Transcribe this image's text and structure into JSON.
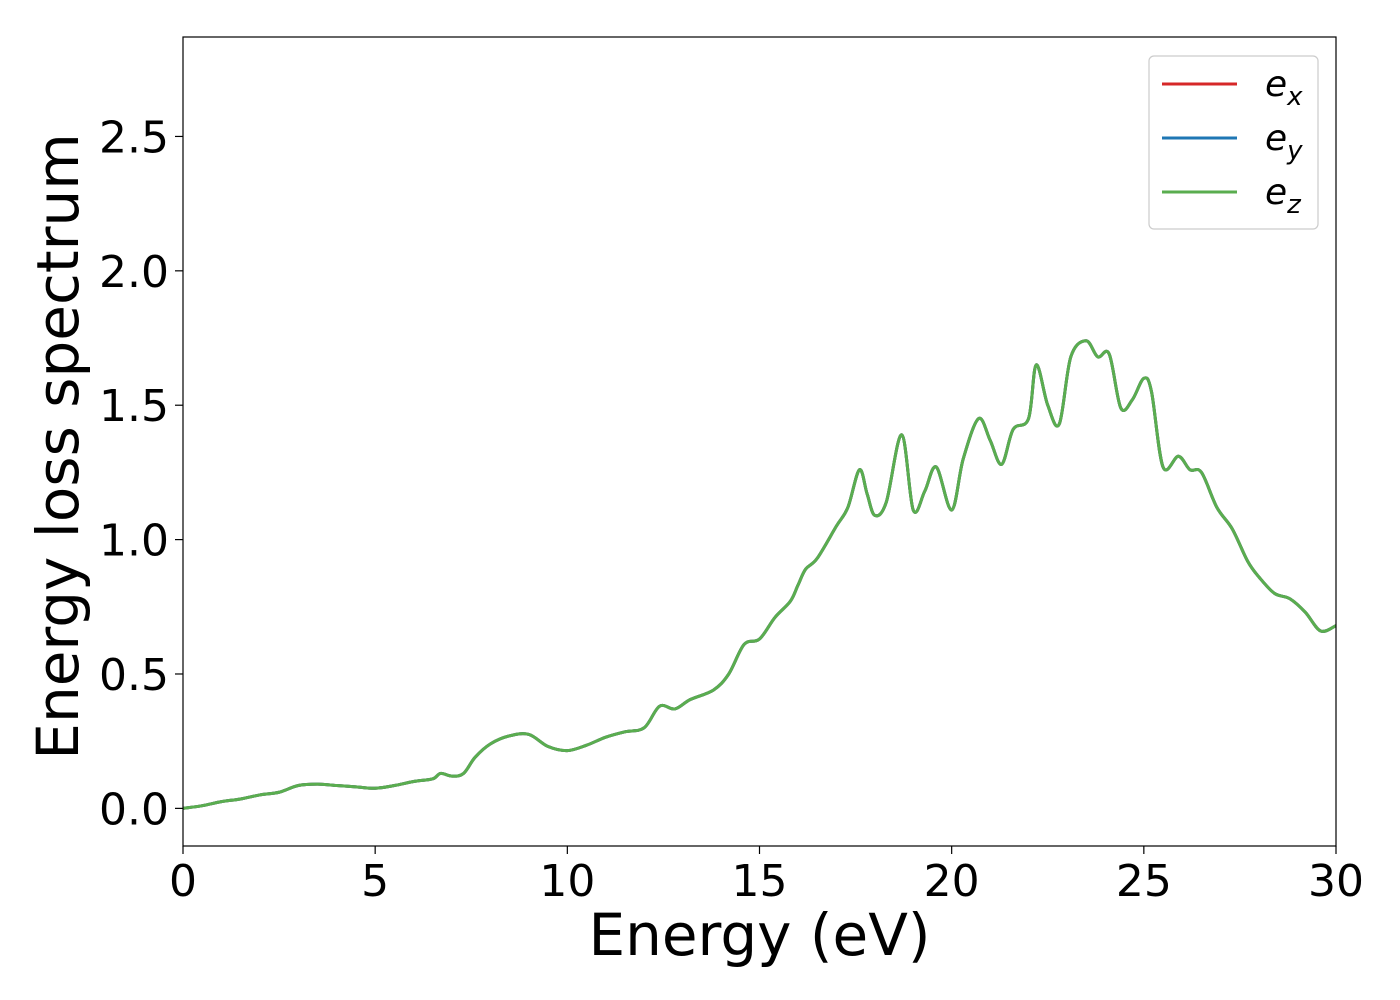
{
  "chart_data": {
    "type": "line",
    "xlabel": "Energy (eV)",
    "ylabel": "Energy loss spectrum",
    "xlim": [
      0,
      30
    ],
    "ylim": [
      -0.14,
      2.87
    ],
    "xticks": [
      0,
      5,
      10,
      15,
      20,
      25,
      30
    ],
    "xtick_labels": [
      "0",
      "5",
      "10",
      "15",
      "20",
      "25",
      "30"
    ],
    "yticks": [
      0.0,
      0.5,
      1.0,
      1.5,
      2.0,
      2.5
    ],
    "ytick_labels": [
      "0.0",
      "0.5",
      "1.0",
      "1.5",
      "2.0",
      "2.5"
    ],
    "grid": false,
    "legend_position": "top-right",
    "colors": {
      "e_x": "#d62728",
      "e_y": "#1f77b4",
      "e_z": "#5aad4f"
    },
    "x": [
      0,
      0.5,
      1,
      1.5,
      2,
      2.5,
      3,
      3.5,
      4,
      4.5,
      5,
      5.5,
      6,
      6.5,
      6.7,
      7,
      7.3,
      7.6,
      8,
      8.5,
      9,
      9.5,
      10,
      10.5,
      11,
      11.5,
      12,
      12.4,
      12.8,
      13.2,
      13.8,
      14.2,
      14.6,
      15,
      15.4,
      15.8,
      16,
      16.2,
      16.5,
      17,
      17.3,
      17.6,
      17.8,
      18,
      18.3,
      18.7,
      19,
      19.3,
      19.6,
      20,
      20.3,
      20.7,
      21,
      21.3,
      21.6,
      22,
      22.2,
      22.5,
      22.8,
      23.1,
      23.5,
      23.8,
      24.1,
      24.4,
      24.7,
      25,
      25.2,
      25.5,
      25.9,
      26.2,
      26.5,
      26.9,
      27.3,
      27.7,
      28,
      28.4,
      28.8,
      29.2,
      29.6,
      30
    ],
    "series": [
      {
        "name": "e_x",
        "label": "e",
        "subscript": "x",
        "visible_line": false,
        "values": [
          0,
          0.01,
          0.025,
          0.035,
          0.05,
          0.06,
          0.085,
          0.09,
          0.085,
          0.08,
          0.075,
          0.085,
          0.1,
          0.11,
          0.13,
          0.12,
          0.13,
          0.19,
          0.24,
          0.27,
          0.275,
          0.23,
          0.215,
          0.235,
          0.265,
          0.285,
          0.3,
          0.38,
          0.37,
          0.405,
          0.44,
          0.5,
          0.61,
          0.63,
          0.71,
          0.77,
          0.83,
          0.89,
          0.93,
          1.05,
          1.12,
          1.26,
          1.17,
          1.09,
          1.14,
          1.39,
          1.11,
          1.18,
          1.27,
          1.11,
          1.3,
          1.45,
          1.37,
          1.28,
          1.41,
          1.45,
          1.65,
          1.5,
          1.43,
          1.68,
          1.74,
          1.68,
          1.69,
          1.49,
          1.52,
          1.6,
          1.55,
          1.27,
          1.31,
          1.26,
          1.25,
          1.12,
          1.04,
          0.92,
          0.86,
          0.8,
          0.78,
          0.73,
          0.66,
          0.68
        ]
      },
      {
        "name": "e_y",
        "label": "e",
        "subscript": "y",
        "visible_line": false,
        "values": [
          0,
          0.01,
          0.025,
          0.035,
          0.05,
          0.06,
          0.085,
          0.09,
          0.085,
          0.08,
          0.075,
          0.085,
          0.1,
          0.11,
          0.13,
          0.12,
          0.13,
          0.19,
          0.24,
          0.27,
          0.275,
          0.23,
          0.215,
          0.235,
          0.265,
          0.285,
          0.3,
          0.38,
          0.37,
          0.405,
          0.44,
          0.5,
          0.61,
          0.63,
          0.71,
          0.77,
          0.83,
          0.89,
          0.93,
          1.05,
          1.12,
          1.26,
          1.17,
          1.09,
          1.14,
          1.39,
          1.11,
          1.18,
          1.27,
          1.11,
          1.3,
          1.45,
          1.37,
          1.28,
          1.41,
          1.45,
          1.65,
          1.5,
          1.43,
          1.68,
          1.74,
          1.68,
          1.69,
          1.49,
          1.52,
          1.6,
          1.55,
          1.27,
          1.31,
          1.26,
          1.25,
          1.12,
          1.04,
          0.92,
          0.86,
          0.8,
          0.78,
          0.73,
          0.66,
          0.68
        ]
      },
      {
        "name": "e_z",
        "label": "e",
        "subscript": "z",
        "visible_line": true,
        "values": [
          0,
          0.01,
          0.025,
          0.035,
          0.05,
          0.06,
          0.085,
          0.09,
          0.085,
          0.08,
          0.075,
          0.085,
          0.1,
          0.11,
          0.13,
          0.12,
          0.13,
          0.19,
          0.24,
          0.27,
          0.275,
          0.23,
          0.215,
          0.235,
          0.265,
          0.285,
          0.3,
          0.38,
          0.37,
          0.405,
          0.44,
          0.5,
          0.61,
          0.63,
          0.71,
          0.77,
          0.83,
          0.89,
          0.93,
          1.05,
          1.12,
          1.26,
          1.17,
          1.09,
          1.14,
          1.39,
          1.11,
          1.18,
          1.27,
          1.11,
          1.3,
          1.45,
          1.37,
          1.28,
          1.41,
          1.45,
          1.65,
          1.5,
          1.43,
          1.68,
          1.74,
          1.68,
          1.69,
          1.49,
          1.52,
          1.6,
          1.55,
          1.27,
          1.31,
          1.26,
          1.25,
          1.12,
          1.04,
          0.92,
          0.86,
          0.8,
          0.78,
          0.73,
          0.66,
          0.68
        ]
      }
    ]
  }
}
